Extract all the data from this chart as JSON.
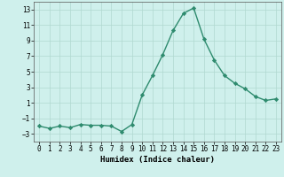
{
  "x": [
    0,
    1,
    2,
    3,
    4,
    5,
    6,
    7,
    8,
    9,
    10,
    11,
    12,
    13,
    14,
    15,
    16,
    17,
    18,
    19,
    20,
    21,
    22,
    23
  ],
  "y": [
    -2,
    -2.3,
    -2,
    -2.2,
    -1.8,
    -1.9,
    -1.9,
    -2,
    -2.7,
    -1.8,
    2,
    4.5,
    7.2,
    10.3,
    12.5,
    13.2,
    9.2,
    6.5,
    4.5,
    3.5,
    2.8,
    1.8,
    1.3,
    1.5
  ],
  "line_color": "#2e8b6e",
  "marker": "D",
  "marker_size": 2.2,
  "bg_color": "#cff0ec",
  "grid_color": "#b0d8d0",
  "xlabel": "Humidex (Indice chaleur)",
  "xlim": [
    -0.5,
    23.5
  ],
  "ylim": [
    -4,
    14
  ],
  "yticks": [
    -3,
    -1,
    1,
    3,
    5,
    7,
    9,
    11,
    13
  ],
  "xticks": [
    0,
    1,
    2,
    3,
    4,
    5,
    6,
    7,
    8,
    9,
    10,
    11,
    12,
    13,
    14,
    15,
    16,
    17,
    18,
    19,
    20,
    21,
    22,
    23
  ],
  "tick_fontsize": 5.5,
  "xlabel_fontsize": 6.5,
  "linewidth": 1.0
}
